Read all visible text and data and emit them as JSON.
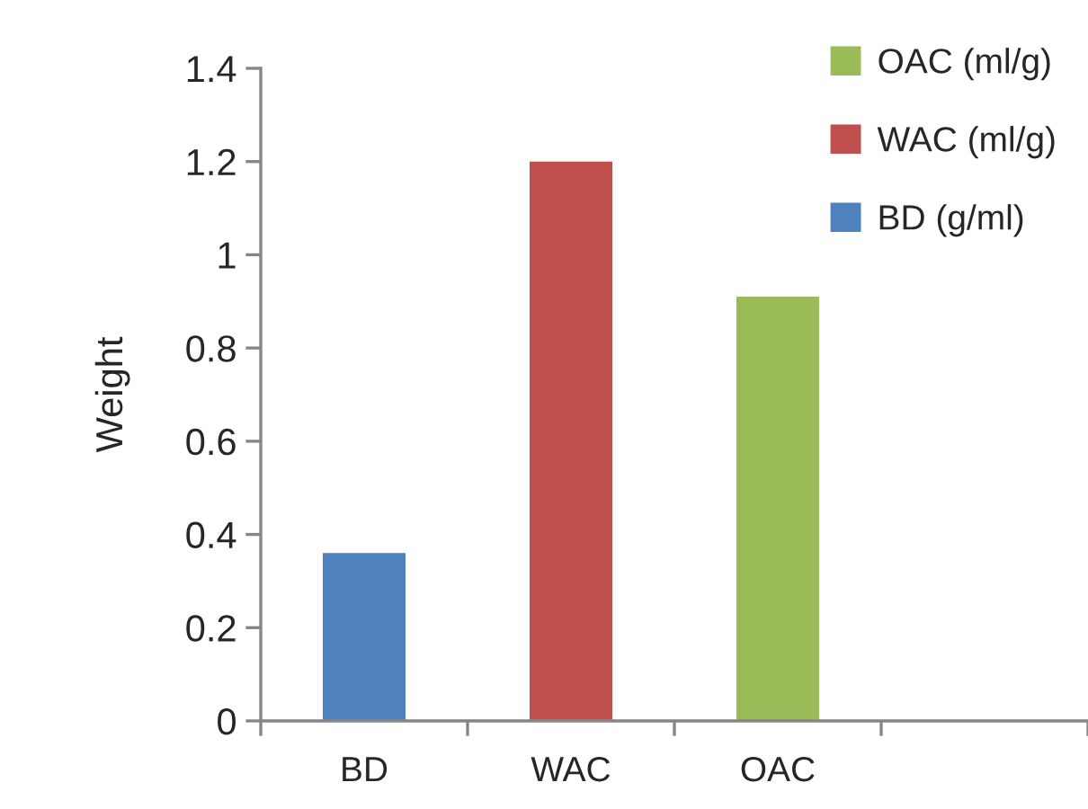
{
  "chart_data": {
    "type": "bar",
    "ylabel": "Weight",
    "categories": [
      "BD",
      "WAC",
      "OAC",
      null
    ],
    "series": [
      {
        "name": "BD (g/ml)",
        "color": "#4f81bd",
        "values": [
          0.36,
          null,
          null,
          null
        ]
      },
      {
        "name": "WAC (ml/g)",
        "color": "#c0504d",
        "values": [
          null,
          1.2,
          null,
          null
        ]
      },
      {
        "name": "OAC (ml/g)",
        "color": "#9bbb59",
        "values": [
          null,
          null,
          0.91,
          null
        ]
      }
    ],
    "ylim": [
      0,
      1.4
    ],
    "yticks": [
      0,
      0.2,
      0.4,
      0.6,
      0.8,
      1,
      1.2,
      1.4
    ],
    "grid": false,
    "legend": "top right"
  }
}
